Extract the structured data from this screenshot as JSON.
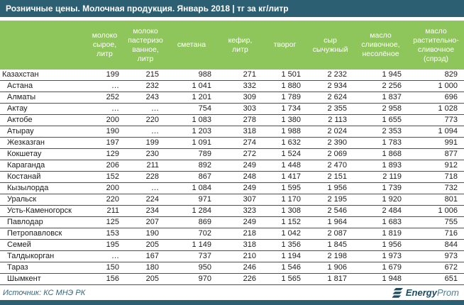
{
  "title_bar": {
    "text": "Розничные цены. Молочная продукция. Январь 2018 | тг за кг/литр"
  },
  "colors": {
    "bar_teal": "#2D5F72",
    "header_green": "#8FC65C",
    "row_border": "#2B5A74",
    "logo_teal": "#1D4B60",
    "source_text": "#33677C"
  },
  "chart_data": {
    "type": "table",
    "title": "Розничные цены. Молочная продукция. Январь 2018 | тг за кг/литр",
    "columns": [
      "",
      "молоко\nсырое,\nлитр",
      "молоко\nпастеризо\nванное,\nлитр",
      "сметана",
      "кефир,\nлитр",
      "творог",
      "сыр\nсычужный",
      "масло\nсливочное,\nнесолёное",
      "масло\nрастительно-\nсливочное\n(спрэд)"
    ],
    "rows": [
      {
        "name": "Казахстан",
        "indent": false,
        "values": [
          "199",
          "215",
          "988",
          "271",
          "1 501",
          "2 232",
          "1 945",
          "829"
        ]
      },
      {
        "name": "Астана",
        "indent": true,
        "values": [
          "…",
          "232",
          "1 041",
          "332",
          "1 880",
          "2 934",
          "2 256",
          "1 000"
        ]
      },
      {
        "name": "Алматы",
        "indent": true,
        "values": [
          "252",
          "243",
          "1 201",
          "309",
          "1 789",
          "2 624",
          "1 837",
          "696"
        ]
      },
      {
        "name": "Актау",
        "indent": true,
        "values": [
          "…",
          "…",
          "754",
          "303",
          "1 734",
          "2 355",
          "2 958",
          "1 028"
        ]
      },
      {
        "name": "Актобе",
        "indent": true,
        "values": [
          "200",
          "220",
          "1 083",
          "278",
          "1 380",
          "2 113",
          "1 655",
          "773"
        ]
      },
      {
        "name": "Атырау",
        "indent": true,
        "values": [
          "190",
          "…",
          "1 203",
          "318",
          "1 988",
          "2 024",
          "2 353",
          "1 094"
        ]
      },
      {
        "name": "Жезказган",
        "indent": true,
        "values": [
          "197",
          "199",
          "1 091",
          "274",
          "1 632",
          "2 390",
          "1 783",
          "991"
        ]
      },
      {
        "name": "Кокшетау",
        "indent": true,
        "values": [
          "129",
          "230",
          "789",
          "272",
          "1 524",
          "2 069",
          "1 868",
          "877"
        ]
      },
      {
        "name": "Караганда",
        "indent": true,
        "values": [
          "206",
          "211",
          "892",
          "249",
          "1 448",
          "2 470",
          "1 893",
          "912"
        ]
      },
      {
        "name": "Костанай",
        "indent": true,
        "values": [
          "152",
          "228",
          "867",
          "248",
          "1 417",
          "2 151",
          "2 119",
          "718"
        ]
      },
      {
        "name": "Кызылорда",
        "indent": true,
        "values": [
          "200",
          "…",
          "1 084",
          "249",
          "1 595",
          "1 956",
          "1 739",
          "732"
        ]
      },
      {
        "name": "Уральск",
        "indent": true,
        "values": [
          "220",
          "224",
          "971",
          "307",
          "1 170",
          "2 195",
          "1 920",
          "801"
        ]
      },
      {
        "name": "Усть-Каменогорск",
        "indent": true,
        "values": [
          "211",
          "234",
          "1 284",
          "323",
          "1 308",
          "2 546",
          "2 484",
          "1 006"
        ]
      },
      {
        "name": "Павлодар",
        "indent": true,
        "values": [
          "125",
          "207",
          "869",
          "249",
          "1 152",
          "1 964",
          "1 683",
          "755"
        ]
      },
      {
        "name": "Петропавловск",
        "indent": true,
        "values": [
          "153",
          "190",
          "702",
          "218",
          "1 042",
          "2 087",
          "1 819",
          "716"
        ]
      },
      {
        "name": "Семей",
        "indent": true,
        "values": [
          "195",
          "205",
          "1 149",
          "318",
          "1 356",
          "1 845",
          "1 956",
          "844"
        ]
      },
      {
        "name": "Талдыкорган",
        "indent": true,
        "values": [
          "…",
          "167",
          "737",
          "210",
          "1 194",
          "2 198",
          "1 973",
          "973"
        ]
      },
      {
        "name": "Тараз",
        "indent": true,
        "values": [
          "150",
          "180",
          "950",
          "246",
          "1 546",
          "1 906",
          "1 679",
          "672"
        ]
      },
      {
        "name": "Шымкент",
        "indent": true,
        "values": [
          "156",
          "205",
          "970",
          "226",
          "1 565",
          "1 817",
          "1 948",
          "651"
        ]
      }
    ]
  },
  "footer": {
    "source": "Источник: КС МНЭ РК",
    "logo": {
      "bold": "Energy",
      "light": "Prom"
    }
  }
}
